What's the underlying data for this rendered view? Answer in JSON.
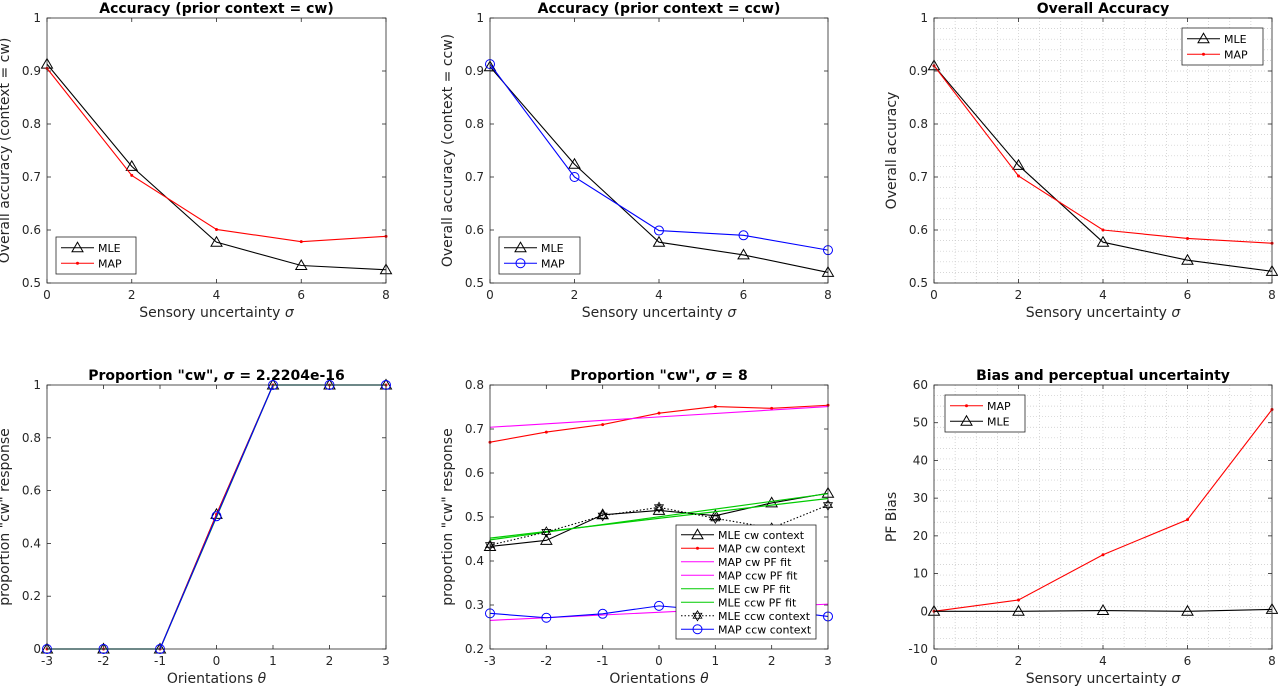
{
  "chart_data": [
    {
      "type": "line",
      "title": "Accuracy (prior context = cw)",
      "xlabel": "Sensory uncertainty σ",
      "ylabel": "Overall accuracy (context = cw)",
      "xlim": [
        0,
        8
      ],
      "ylim": [
        0.5,
        1
      ],
      "xticks": [
        "0",
        "2",
        "4",
        "6",
        "8"
      ],
      "yticks": [
        "0.5",
        "0.6",
        "0.7",
        "0.8",
        "0.9",
        "1"
      ],
      "grid": false,
      "legend_position": "bottom-left",
      "series": [
        {
          "name": "MLE",
          "color": "#000000",
          "marker": "triangle",
          "style": "solid",
          "x": [
            0,
            2,
            4,
            6,
            8
          ],
          "y": [
            0.913,
            0.72,
            0.577,
            0.533,
            0.525
          ]
        },
        {
          "name": "MAP",
          "color": "#ff0000",
          "marker": "dot",
          "style": "solid",
          "x": [
            0,
            2,
            4,
            6,
            8
          ],
          "y": [
            0.905,
            0.703,
            0.601,
            0.578,
            0.588
          ]
        }
      ]
    },
    {
      "type": "line",
      "title": "Accuracy (prior context = ccw)",
      "xlabel": "Sensory uncertainty σ",
      "ylabel": "Overall accuracy (context = ccw)",
      "xlim": [
        0,
        8
      ],
      "ylim": [
        0.5,
        1
      ],
      "xticks": [
        "0",
        "2",
        "4",
        "6",
        "8"
      ],
      "yticks": [
        "0.5",
        "0.6",
        "0.7",
        "0.8",
        "0.9",
        "1"
      ],
      "grid": false,
      "legend_position": "bottom-left",
      "series": [
        {
          "name": "MLE",
          "color": "#000000",
          "marker": "triangle",
          "style": "solid",
          "x": [
            0,
            2,
            4,
            6,
            8
          ],
          "y": [
            0.908,
            0.724,
            0.577,
            0.553,
            0.52
          ]
        },
        {
          "name": "MAP",
          "color": "#0000ff",
          "marker": "circle",
          "style": "solid",
          "x": [
            0,
            2,
            4,
            6,
            8
          ],
          "y": [
            0.913,
            0.7,
            0.599,
            0.59,
            0.562
          ]
        }
      ]
    },
    {
      "type": "line",
      "title": "Overall Accuracy",
      "xlabel": "Sensory uncertainty σ",
      "ylabel": "Overall accuracy",
      "xlim": [
        0,
        8
      ],
      "ylim": [
        0.5,
        1
      ],
      "xticks": [
        "0",
        "2",
        "4",
        "6",
        "8"
      ],
      "yticks": [
        "0.5",
        "0.6",
        "0.7",
        "0.8",
        "0.9",
        "1"
      ],
      "grid": true,
      "legend_position": "top-right",
      "series": [
        {
          "name": "MLE",
          "color": "#000000",
          "marker": "triangle",
          "style": "solid",
          "x": [
            0,
            2,
            4,
            6,
            8
          ],
          "y": [
            0.91,
            0.722,
            0.577,
            0.543,
            0.522
          ]
        },
        {
          "name": "MAP",
          "color": "#ff0000",
          "marker": "dot",
          "style": "solid",
          "x": [
            0,
            2,
            4,
            6,
            8
          ],
          "y": [
            0.91,
            0.702,
            0.6,
            0.584,
            0.575
          ]
        }
      ]
    },
    {
      "type": "line",
      "title": "Proportion \"cw\", σ = 2.2204e-16",
      "xlabel": "Orientations θ",
      "ylabel": "proportion \"cw\" response",
      "xlim": [
        -3,
        3
      ],
      "ylim": [
        0,
        1
      ],
      "xticks": [
        "-3",
        "-2",
        "-1",
        "0",
        "1",
        "2",
        "3"
      ],
      "yticks": [
        "0",
        "0.2",
        "0.4",
        "0.6",
        "0.8",
        "1"
      ],
      "grid": false,
      "series": [
        {
          "color": "#000000",
          "marker": "triangle",
          "style": "solid",
          "x": [
            -3,
            -2,
            -1,
            0,
            1,
            2,
            3
          ],
          "y": [
            0,
            0,
            0,
            0.51,
            1,
            1,
            1
          ]
        },
        {
          "color": "#ff0000",
          "marker": "dot",
          "style": "solid",
          "x": [
            -3,
            -2,
            -1,
            0,
            1,
            2,
            3
          ],
          "y": [
            0,
            0,
            0,
            0.51,
            1,
            1,
            1
          ]
        },
        {
          "color": "#ff00ff",
          "marker": "none",
          "style": "solid",
          "x": [
            -3,
            -2,
            -1,
            0,
            1,
            2,
            3
          ],
          "y": [
            0,
            0,
            0,
            0.5,
            1,
            1,
            1
          ]
        },
        {
          "color": "#00cc00",
          "marker": "none",
          "style": "solid",
          "x": [
            -3,
            -2,
            -1,
            0,
            1,
            2,
            3
          ],
          "y": [
            0,
            0,
            0,
            0.5,
            1,
            1,
            1
          ]
        },
        {
          "color": "#0000ff",
          "marker": "circle",
          "style": "solid",
          "x": [
            -3,
            -2,
            -1,
            0,
            1,
            2,
            3
          ],
          "y": [
            0,
            0,
            0,
            0.503,
            1,
            1,
            1
          ]
        }
      ]
    },
    {
      "type": "line",
      "title": "Proportion \"cw\", σ = 8",
      "xlabel": "Orientations θ",
      "ylabel": "proportion \"cw\" response",
      "xlim": [
        -3,
        3
      ],
      "ylim": [
        0.2,
        0.8
      ],
      "xticks": [
        "-3",
        "-2",
        "-1",
        "0",
        "1",
        "2",
        "3"
      ],
      "yticks": [
        "0.2",
        "0.3",
        "0.4",
        "0.5",
        "0.6",
        "0.7",
        "0.8"
      ],
      "grid": false,
      "legend_position": "bottom-right",
      "series": [
        {
          "name": "MLE cw context",
          "color": "#000000",
          "marker": "triangle",
          "style": "solid",
          "x": [
            -3,
            -2,
            -1,
            0,
            1,
            2,
            3
          ],
          "y": [
            0.433,
            0.447,
            0.505,
            0.515,
            0.503,
            0.532,
            0.554
          ]
        },
        {
          "name": "MAP cw context",
          "color": "#ff0000",
          "marker": "dot",
          "style": "solid",
          "x": [
            -3,
            -2,
            -1,
            0,
            1,
            2,
            3
          ],
          "y": [
            0.67,
            0.693,
            0.71,
            0.736,
            0.751,
            0.747,
            0.754
          ]
        },
        {
          "name": "MAP cw PF fit",
          "color": "#ff00ff",
          "marker": "none",
          "style": "solid",
          "x": [
            -3,
            3
          ],
          "y": [
            0.704,
            0.751
          ]
        },
        {
          "name": "MAP ccw PF fit",
          "color": "#ff00ff",
          "marker": "none",
          "style": "solid",
          "x": [
            -3,
            3
          ],
          "y": [
            0.265,
            0.302
          ]
        },
        {
          "name": "MLE cw PF fit",
          "color": "#00cc00",
          "marker": "none",
          "style": "solid",
          "x": [
            -3,
            3
          ],
          "y": [
            0.448,
            0.553
          ]
        },
        {
          "name": "MLE ccw PF fit",
          "color": "#00cc00",
          "marker": "none",
          "style": "solid",
          "x": [
            -3,
            3
          ],
          "y": [
            0.452,
            0.542
          ]
        },
        {
          "name": "MLE ccw context",
          "color": "#000000",
          "marker": "hexagram",
          "style": "dotted",
          "x": [
            -3,
            -2,
            -1,
            0,
            1,
            2,
            3
          ],
          "y": [
            0.436,
            0.466,
            0.503,
            0.522,
            0.497,
            0.475,
            0.527
          ]
        },
        {
          "name": "MAP ccw context",
          "color": "#0000ff",
          "marker": "circle",
          "style": "solid",
          "x": [
            -3,
            -2,
            -1,
            0,
            1,
            2,
            3
          ],
          "y": [
            0.281,
            0.271,
            0.28,
            0.298,
            0.287,
            0.29,
            0.274
          ]
        }
      ]
    },
    {
      "type": "line",
      "title": "Bias and perceptual uncertainty",
      "xlabel": "Sensory uncertainty σ",
      "ylabel": "PF Bias",
      "xlim": [
        0,
        8
      ],
      "ylim": [
        -10,
        60
      ],
      "xticks": [
        "0",
        "2",
        "4",
        "6",
        "8"
      ],
      "yticks": [
        "-10",
        "0",
        "10",
        "20",
        "30",
        "40",
        "50",
        "60"
      ],
      "grid": true,
      "legend_position": "top-left",
      "series": [
        {
          "name": "MAP",
          "color": "#ff0000",
          "marker": "dot",
          "style": "solid",
          "x": [
            0,
            2,
            4,
            6,
            8
          ],
          "y": [
            0,
            3,
            15,
            24.3,
            53.5
          ]
        },
        {
          "name": "MLE",
          "color": "#000000",
          "marker": "triangle",
          "style": "solid",
          "x": [
            0,
            2,
            4,
            6,
            8
          ],
          "y": [
            0,
            0,
            0.2,
            0,
            0.5
          ]
        }
      ]
    }
  ]
}
